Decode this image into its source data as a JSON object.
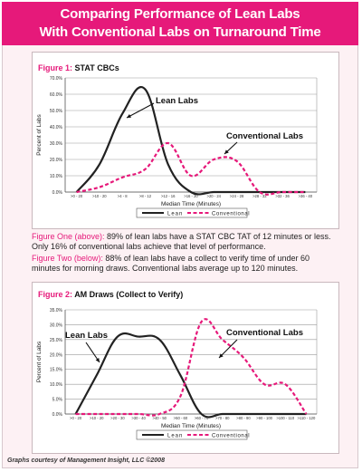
{
  "banner": {
    "line1": "Comparing Performance of Lean Labs",
    "line2": "With Conventional Labs on Turnaround Time"
  },
  "figure1": {
    "label": "Figure 1:",
    "title": "STAT CBCs"
  },
  "caption1": {
    "lead": "Figure One (above):",
    "text": " 89% of lean labs have a STAT CBC TAT of 12 minutes or less. Only 16% of conventional labs achieve that level of performance."
  },
  "caption2": {
    "lead": "Figure Two (below):",
    "text": " 88% of lean labs have a collect to verify time of under 60 minutes for morning draws. Conventional labs average up to 120 minutes."
  },
  "figure2": {
    "label": "Figure 2:",
    "title": "AM Draws (Collect to Verify)"
  },
  "credit": "Graphs courtesy of Management Insight, LLC ©2008",
  "colors": {
    "accent": "#e6197a",
    "lean": "#222222",
    "conventional": "#e6197a"
  },
  "chart_data": [
    {
      "type": "line",
      "title": "STAT CBCs",
      "xlabel": "Median Time (Minutes)",
      "ylabel": "Percent of Labs",
      "ylim": [
        0,
        70
      ],
      "yticks": [
        "0.0%",
        "10.0%",
        "20.0%",
        "30.0%",
        "40.0%",
        "50.0%",
        "60.0%",
        "70.0%"
      ],
      "grid": true,
      "legend": "bottom",
      "categories": [
        ">0 - 20",
        ">10 - 20",
        ">4 - 8",
        ">8 - 12",
        ">12 - 16",
        ">16 - 20",
        ">20 - 24",
        ">24 - 28",
        ">28 - 32",
        ">32 - 36",
        ">36 - 40"
      ],
      "series": [
        {
          "name": "Lean",
          "values": [
            0,
            17,
            48,
            63,
            17,
            0,
            0,
            0,
            0,
            0,
            0
          ]
        },
        {
          "name": "Conventional",
          "values": [
            0,
            3,
            9,
            14,
            30,
            10,
            20,
            19,
            0,
            0,
            0
          ]
        }
      ],
      "annotations": [
        "Lean Labs",
        "Conventional Labs"
      ]
    },
    {
      "type": "line",
      "title": "AM Draws (Collect to Verify)",
      "xlabel": "Median Time (Minutes)",
      "ylabel": "Percent of Labs",
      "ylim": [
        0,
        35
      ],
      "yticks": [
        "0.0%",
        "5.0%",
        "10.0%",
        "15.0%",
        "20.0%",
        "25.0%",
        "30.0%",
        "35.0%"
      ],
      "grid": true,
      "legend": "bottom",
      "categories": [
        ">0 - 20",
        ">10 - 20",
        ">20 - 30",
        ">30 - 40",
        ">40 - 50",
        ">50 - 60",
        ">60 - 70",
        ">70 - 80",
        ">80 - 90",
        ">90 - 100",
        ">100 - 110",
        ">110 - 120"
      ],
      "series": [
        {
          "name": "Lean",
          "values": [
            0,
            13,
            26,
            26,
            25,
            13,
            0,
            0,
            0,
            0,
            0,
            0
          ]
        },
        {
          "name": "Conventional",
          "values": [
            0,
            0,
            0,
            0,
            0,
            6,
            31,
            25,
            19,
            10,
            10,
            0
          ]
        }
      ],
      "annotations": [
        "Lean Labs",
        "Conventional Labs"
      ]
    }
  ]
}
